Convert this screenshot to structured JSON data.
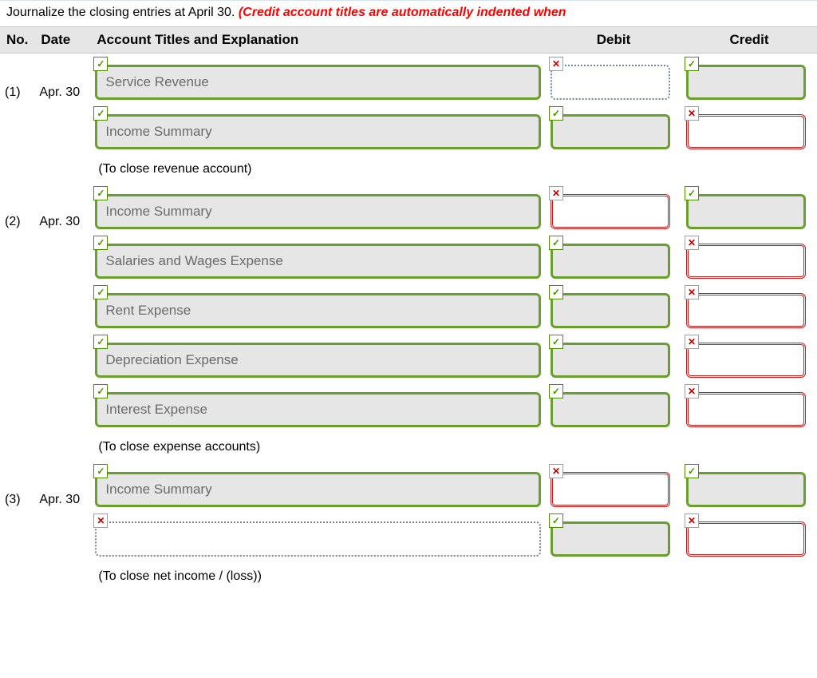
{
  "instruction": {
    "prefix": "Journalize the closing entries at April 30. ",
    "emphasis": "(Credit account titles are automatically indented when"
  },
  "headers": {
    "no": "No.",
    "date": "Date",
    "acct": "Account Titles and Explanation",
    "debit": "Debit",
    "credit": "Credit"
  },
  "rows": [
    {
      "no": "(1)",
      "date": "Apr. 30",
      "acct": {
        "value": "Service Revenue",
        "status": "correct",
        "mark": "check"
      },
      "debit": {
        "status": "neutral",
        "mark": "cross"
      },
      "credit": {
        "status": "correct",
        "mark": "check"
      }
    },
    {
      "no": "",
      "date": "",
      "acct": {
        "value": "Income Summary",
        "status": "correct",
        "mark": "check"
      },
      "debit": {
        "status": "correct",
        "mark": "check"
      },
      "credit": {
        "status": "incorrect",
        "mark": "cross"
      }
    },
    {
      "explain": "(To close revenue account)"
    },
    {
      "no": "(2)",
      "date": "Apr. 30",
      "acct": {
        "value": "Income Summary",
        "status": "correct",
        "mark": "check"
      },
      "debit": {
        "status": "incorrect",
        "mark": "cross"
      },
      "credit": {
        "status": "correct",
        "mark": "check"
      }
    },
    {
      "no": "",
      "date": "",
      "acct": {
        "value": "Salaries and Wages Expense",
        "status": "correct",
        "mark": "check"
      },
      "debit": {
        "status": "correct",
        "mark": "check"
      },
      "credit": {
        "status": "incorrect",
        "mark": "cross"
      }
    },
    {
      "no": "",
      "date": "",
      "acct": {
        "value": "Rent Expense",
        "status": "correct",
        "mark": "check"
      },
      "debit": {
        "status": "correct",
        "mark": "check"
      },
      "credit": {
        "status": "incorrect",
        "mark": "cross"
      }
    },
    {
      "no": "",
      "date": "",
      "acct": {
        "value": "Depreciation Expense",
        "status": "correct",
        "mark": "check"
      },
      "debit": {
        "status": "correct",
        "mark": "check"
      },
      "credit": {
        "status": "incorrect",
        "mark": "cross"
      }
    },
    {
      "no": "",
      "date": "",
      "acct": {
        "value": "Interest Expense",
        "status": "correct",
        "mark": "check"
      },
      "debit": {
        "status": "correct",
        "mark": "check"
      },
      "credit": {
        "status": "incorrect",
        "mark": "cross"
      }
    },
    {
      "explain": "(To close expense accounts)"
    },
    {
      "no": "(3)",
      "date": "Apr. 30",
      "acct": {
        "value": "Income Summary",
        "status": "correct",
        "mark": "check"
      },
      "debit": {
        "status": "incorrect",
        "mark": "cross"
      },
      "credit": {
        "status": "correct",
        "mark": "check"
      }
    },
    {
      "no": "",
      "date": "",
      "acct": {
        "value": "",
        "status": "neutral-gray",
        "mark": "cross"
      },
      "debit": {
        "status": "correct",
        "mark": "check"
      },
      "credit": {
        "status": "incorrect",
        "mark": "cross"
      }
    },
    {
      "explain": "(To close net income / (loss))"
    }
  ],
  "glyphs": {
    "check": "✓",
    "cross": "✕"
  }
}
